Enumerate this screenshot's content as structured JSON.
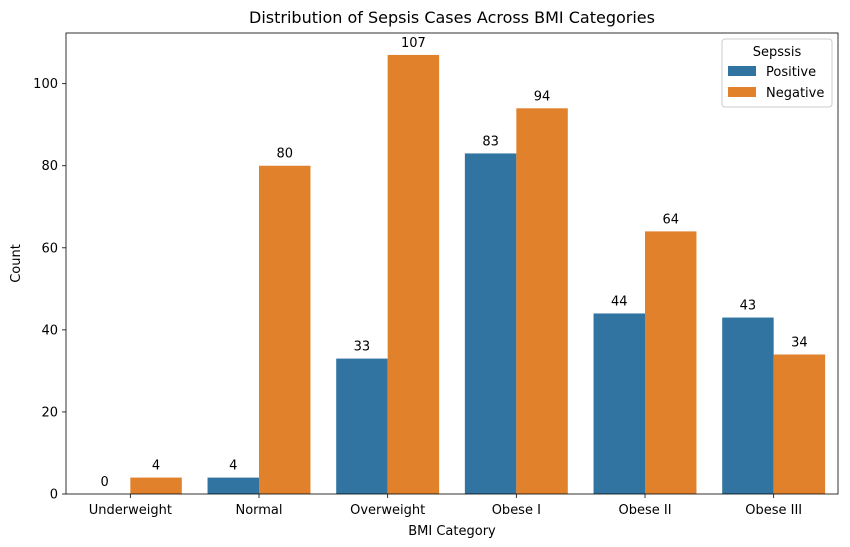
{
  "chart_data": {
    "type": "bar",
    "title": "Distribution of Sepsis Cases Across BMI Categories",
    "xlabel": "BMI Category",
    "ylabel": "Count",
    "categories": [
      "Underweight",
      "Normal",
      "Overweight",
      "Obese I",
      "Obese II",
      "Obese III"
    ],
    "series": [
      {
        "name": "Positive",
        "values": [
          0,
          4,
          33,
          83,
          44,
          43
        ],
        "color": "#3274a1"
      },
      {
        "name": "Negative",
        "values": [
          4,
          80,
          107,
          94,
          64,
          34
        ],
        "color": "#e1812c"
      }
    ],
    "ylim": [
      0,
      112.35
    ],
    "yticks": [
      0,
      20,
      40,
      60,
      80,
      100
    ],
    "grid": false,
    "legend": {
      "title": "Sepssis",
      "placement": "top-right"
    },
    "data_labels": true
  }
}
